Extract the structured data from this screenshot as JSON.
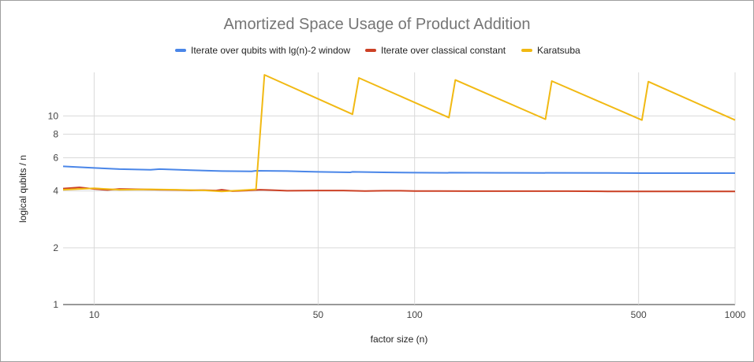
{
  "chart_data": {
    "type": "line",
    "title": "Amortized Space Usage of Product Addition",
    "xlabel": "factor size (n)",
    "ylabel": "logical qubits / n",
    "xscale": "log",
    "yscale": "log",
    "xlim": [
      8,
      1000
    ],
    "ylim": [
      1,
      17
    ],
    "xticks": [
      10,
      50,
      100,
      500,
      1000
    ],
    "yticks": [
      1,
      2,
      4,
      6,
      8,
      10
    ],
    "grid": true,
    "legend_position": "top",
    "series": [
      {
        "name": "Iterate over qubits with lg(n)-2 window",
        "color": "#4a86e8",
        "points": [
          [
            8,
            5.4
          ],
          [
            10,
            5.3
          ],
          [
            12,
            5.22
          ],
          [
            15,
            5.18
          ],
          [
            16,
            5.22
          ],
          [
            20,
            5.15
          ],
          [
            25,
            5.1
          ],
          [
            31,
            5.08
          ],
          [
            32,
            5.12
          ],
          [
            40,
            5.1
          ],
          [
            50,
            5.05
          ],
          [
            63,
            5.02
          ],
          [
            64,
            5.05
          ],
          [
            80,
            5.02
          ],
          [
            100,
            5.0
          ],
          [
            127,
            4.99
          ],
          [
            128,
            5.0
          ],
          [
            200,
            4.99
          ],
          [
            255,
            4.98
          ],
          [
            256,
            4.99
          ],
          [
            400,
            4.98
          ],
          [
            511,
            4.97
          ],
          [
            512,
            4.97
          ],
          [
            700,
            4.97
          ],
          [
            1000,
            4.97
          ]
        ]
      },
      {
        "name": "Iterate over classical constant",
        "color": "#cc4125",
        "points": [
          [
            8,
            4.12
          ],
          [
            9,
            4.18
          ],
          [
            10,
            4.1
          ],
          [
            11,
            4.05
          ],
          [
            12,
            4.1
          ],
          [
            14,
            4.08
          ],
          [
            16,
            4.06
          ],
          [
            18,
            4.05
          ],
          [
            20,
            4.03
          ],
          [
            22,
            4.04
          ],
          [
            24,
            4.02
          ],
          [
            25,
            4.06
          ],
          [
            27,
            3.99
          ],
          [
            30,
            4.02
          ],
          [
            33,
            4.06
          ],
          [
            36,
            4.04
          ],
          [
            40,
            4.01
          ],
          [
            50,
            4.02
          ],
          [
            60,
            4.02
          ],
          [
            70,
            4.0
          ],
          [
            80,
            4.01
          ],
          [
            90,
            4.01
          ],
          [
            100,
            4.0
          ],
          [
            120,
            4.0
          ],
          [
            150,
            3.99
          ],
          [
            200,
            3.99
          ],
          [
            300,
            3.99
          ],
          [
            400,
            3.98
          ],
          [
            500,
            3.98
          ],
          [
            700,
            3.98
          ],
          [
            1000,
            3.98
          ]
        ]
      },
      {
        "name": "Karatsuba",
        "color": "#f1b913",
        "points": [
          [
            8,
            4.06
          ],
          [
            10,
            4.13
          ],
          [
            12,
            4.06
          ],
          [
            15,
            4.08
          ],
          [
            18,
            4.06
          ],
          [
            22,
            4.03
          ],
          [
            25,
            3.98
          ],
          [
            30,
            4.05
          ],
          [
            32,
            4.08
          ],
          [
            34,
            16.5
          ],
          [
            64,
            10.2
          ],
          [
            67,
            15.9
          ],
          [
            128,
            9.8
          ],
          [
            134,
            15.5
          ],
          [
            256,
            9.6
          ],
          [
            268,
            15.3
          ],
          [
            512,
            9.5
          ],
          [
            536,
            15.2
          ],
          [
            1000,
            9.5
          ]
        ]
      }
    ]
  }
}
